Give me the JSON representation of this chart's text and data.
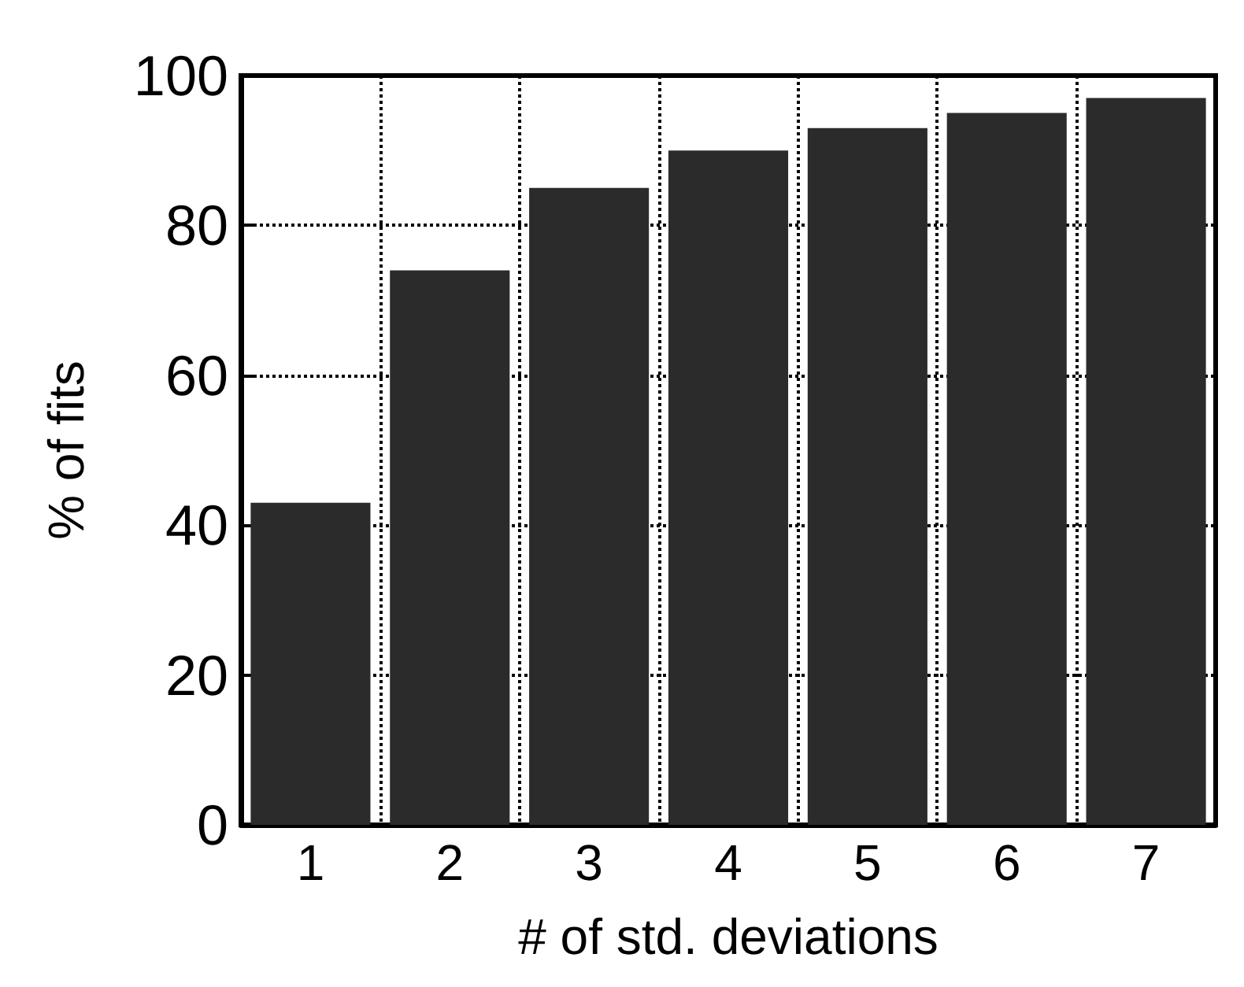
{
  "chart_data": {
    "type": "bar",
    "xlabel": "# of std. deviations",
    "ylabel": "% of fits",
    "categories": [
      "1",
      "2",
      "3",
      "4",
      "5",
      "6",
      "7"
    ],
    "values": [
      43,
      74,
      85,
      90,
      93,
      95,
      97
    ],
    "color": "#2b2b2b",
    "ylim": [
      0,
      100
    ],
    "yticks": [
      0,
      20,
      40,
      60,
      80,
      100
    ],
    "grid": true
  }
}
